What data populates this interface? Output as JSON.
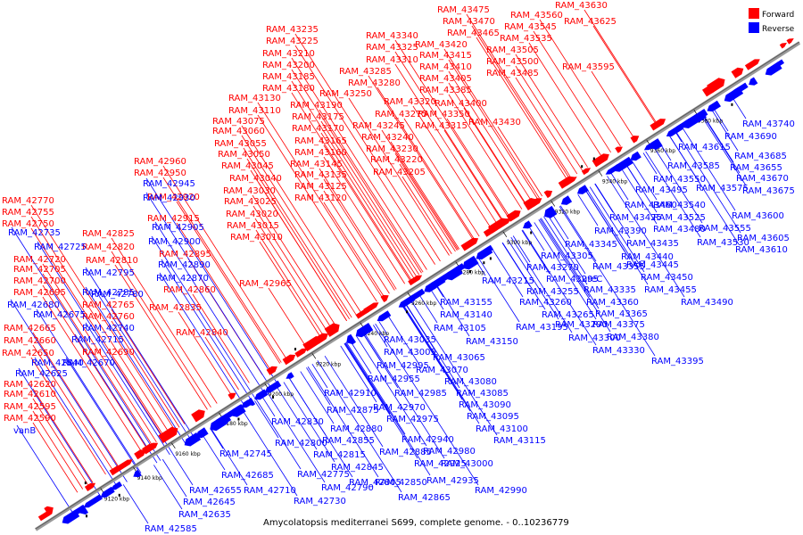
{
  "caption": "Amycolatopsis mediterranei S699, complete genome. - 0..10236779",
  "legend": {
    "forward": {
      "label": "Forward",
      "color": "#ff0000"
    },
    "reverse": {
      "label": "Reverse",
      "color": "#0000ff"
    }
  },
  "axis": {
    "color": "#8c8c8c",
    "ticks": [
      "9120 kbp",
      "9140 kbp",
      "9160 kbp",
      "9180 kbp",
      "9200 kbp",
      "9220 kbp",
      "9240 kbp",
      "9260 kbp",
      "9280 kbp",
      "9300 kbp",
      "9320 kbp",
      "9340 kbp",
      "9360 kbp",
      "9380 kbp"
    ]
  },
  "forward_labels": [
    "RAM_43475",
    "RAM_43470",
    "RAM_43465",
    "RAM_43630",
    "RAM_43560",
    "RAM_43625",
    "RAM_43545",
    "RAM_43535",
    "RAM_43505",
    "RAM_43500",
    "RAM_43485",
    "RAM_43595",
    "RAM_43235",
    "RAM_43225",
    "RAM_43340",
    "RAM_43325",
    "RAM_43420",
    "RAM_43415",
    "RAM_43210",
    "RAM_43310",
    "RAM_43410",
    "RAM_43200",
    "RAM_43285",
    "RAM_43405",
    "RAM_43185",
    "RAM_43280",
    "RAM_43385",
    "RAM_43180",
    "RAM_43250",
    "RAM_43130",
    "RAM_43320",
    "RAM_43400",
    "RAM_43110",
    "RAM_43190",
    "RAM_43275",
    "RAM_43350",
    "RAM_43075",
    "RAM_43175",
    "RAM_43245",
    "RAM_43315",
    "RAM_43430",
    "RAM_43060",
    "RAM_43170",
    "RAM_43240",
    "RAM_43055",
    "RAM_43165",
    "RAM_43230",
    "RAM_43050",
    "RAM_43160",
    "RAM_43220",
    "RAM_43045",
    "RAM_43145",
    "RAM_43205",
    "RAM_42960",
    "RAM_43040",
    "RAM_43135",
    "RAM_42950",
    "RAM_43125",
    "RAM_43030",
    "RAM_43120",
    "RAM_42920",
    "RAM_43025",
    "RAM_42915",
    "RAM_43020",
    "RAM_43015",
    "RAM_43010",
    "RAM_42770",
    "RAM_42825",
    "RAM_42755",
    "RAM_42750",
    "RAM_42820",
    "RAM_42895",
    "RAM_42965",
    "RAM_42810",
    "RAM_42720",
    "RAM_42705",
    "RAM_42860",
    "RAM_42700",
    "RAM_42695",
    "RAM_42835",
    "RAM_42765",
    "RAM_42760",
    "RAM_42665",
    "RAM_42840",
    "RAM_42660",
    "RAM_42690",
    "RAM_42650",
    "RAM_42620",
    "RAM_42610",
    "RAM_42595",
    "RAM_42590"
  ],
  "reverse_labels": [
    "RAM_43740",
    "RAM_43690",
    "RAM_43615",
    "RAM_43685",
    "RAM_43585",
    "RAM_43655",
    "RAM_43550",
    "RAM_43575",
    "RAM_43670",
    "RAM_43495",
    "RAM_43675",
    "RAM_43460",
    "RAM_43540",
    "RAM_43600",
    "RAM_43425",
    "RAM_43525",
    "RAM_43555",
    "RAM_43390",
    "RAM_43480",
    "RAM_43605",
    "RAM_43345",
    "RAM_43435",
    "RAM_43530",
    "RAM_43610",
    "RAM_43305",
    "RAM_43440",
    "RAM_43270",
    "RAM_43355",
    "RAM_43445",
    "RAM_43215",
    "RAM_43295",
    "ureC",
    "RAM_43450",
    "RAM_43255",
    "RAM_43335",
    "RAM_43455",
    "RAM_43155",
    "RAM_43260",
    "RAM_43360",
    "RAM_43490",
    "RAM_43140",
    "RAM_43265",
    "RAM_43365",
    "RAM_43105",
    "RAM_43195",
    "RAM_43290",
    "RAM_43375",
    "RAM_43150",
    "RAM_43300",
    "RAM_43380",
    "RAM_43035",
    "RAM_43330",
    "RAM_43005",
    "RAM_43065",
    "RAM_43395",
    "RAM_42995",
    "RAM_43070",
    "RAM_42955",
    "RAM_43080",
    "RAM_42910",
    "RAM_42985",
    "RAM_43085",
    "RAM_42970",
    "RAM_43090",
    "RAM_42875",
    "RAM_42975",
    "RAM_43095",
    "RAM_42830",
    "RAM_42880",
    "RAM_43100",
    "RAM_42855",
    "RAM_42940",
    "RAM_43115",
    "RAM_42800",
    "RAM_42815",
    "RAM_42885",
    "RAM_42980",
    "RAM_42745",
    "RAM_42925",
    "RAM_43000",
    "RAM_42845",
    "RAM_42685",
    "RAM_42775",
    "RAM_42850",
    "RAM_42935",
    "RAM_42710",
    "RAM_42790",
    "RAM_42805",
    "RAM_42990",
    "RAM_42655",
    "RAM_42730",
    "RAM_42865",
    "RAM_42645",
    "RAM_42635",
    "RAM_42585",
    "RAM_42945",
    "RAM_42930",
    "RAM_42905",
    "RAM_42900",
    "RAM_42890",
    "RAM_42870",
    "RAM_42735",
    "RAM_42725",
    "RAM_42795",
    "RAM_42785",
    "RAM_42780",
    "RAM_42680",
    "RAM_42675",
    "RAM_42740",
    "RAM_42715",
    "RAM_42670",
    "RAM_42640",
    "RAM_42625",
    "vanB"
  ]
}
